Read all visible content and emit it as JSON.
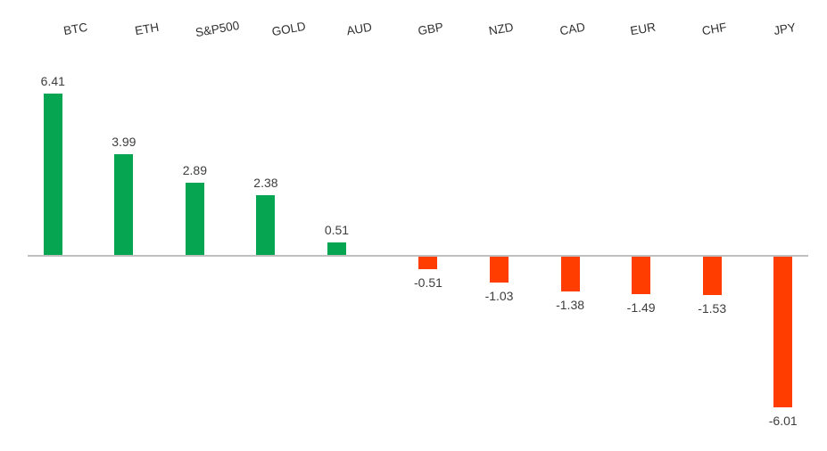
{
  "chart_data": {
    "type": "bar",
    "categories": [
      "BTC",
      "ETH",
      "S&P500",
      "GOLD",
      "AUD",
      "GBP",
      "NZD",
      "CAD",
      "EUR",
      "CHF",
      "JPY"
    ],
    "values": [
      6.41,
      3.99,
      2.89,
      2.38,
      0.51,
      -0.51,
      -1.03,
      -1.38,
      -1.49,
      -1.53,
      -6.01
    ],
    "value_labels": [
      "6.41",
      "3.99",
      "2.89",
      "2.38",
      "0.51",
      "-0.51",
      "-1.03",
      "-1.38",
      "-1.49",
      "-1.53",
      "-6.01"
    ],
    "title": "",
    "xlabel": "",
    "ylabel": "",
    "ylim": [
      -6.6,
      7.0
    ],
    "grid": false,
    "legend_position": "none",
    "category_label_position": "top",
    "category_label_rotation_deg": -10,
    "positive_color": "#05A551",
    "negative_color": "#FF3D00",
    "axis_line_color": "#BFBFBF",
    "category_label_color": "#303030",
    "value_label_color": "#3D3D3D"
  }
}
